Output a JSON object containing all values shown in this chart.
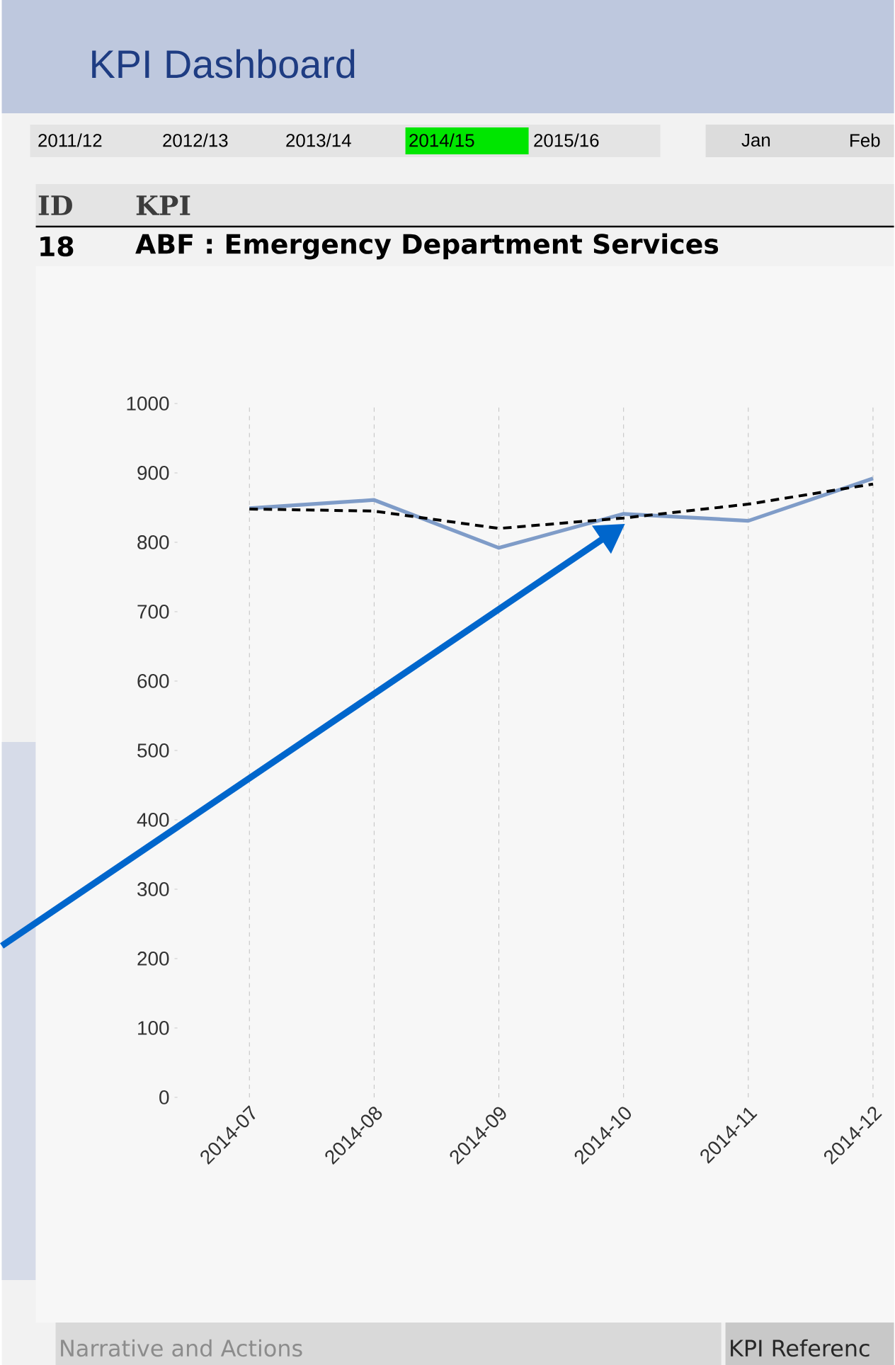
{
  "chart_data": {
    "type": "line",
    "title": "KPI Dashboard",
    "annotations": [
      "2011/12",
      "2012/13",
      "2013/14",
      "2014/15",
      "2015/16",
      "Jan",
      "Feb",
      "ID",
      "KPI",
      "18",
      "ABF : Emergency Department Services",
      "Narrative and Actions",
      "KPI Referenc"
    ],
    "categories": [
      "2014-07",
      "2014-08",
      "2014-09",
      "2014-10",
      "2014-11",
      "2014-12"
    ],
    "series": [
      {
        "color": "#7f9cc8",
        "values": [
          849,
          861,
          792,
          841,
          831,
          892
        ]
      },
      {
        "type": "line",
        "color": "#000000",
        "line_style": "dashed",
        "values": [
          848,
          845,
          820,
          835,
          855,
          884
        ]
      }
    ],
    "ylim": [
      0,
      1000
    ],
    "yticks": [
      0,
      100,
      200,
      300,
      400,
      500,
      600,
      700,
      800,
      900,
      1000
    ],
    "grid": "x"
  }
}
